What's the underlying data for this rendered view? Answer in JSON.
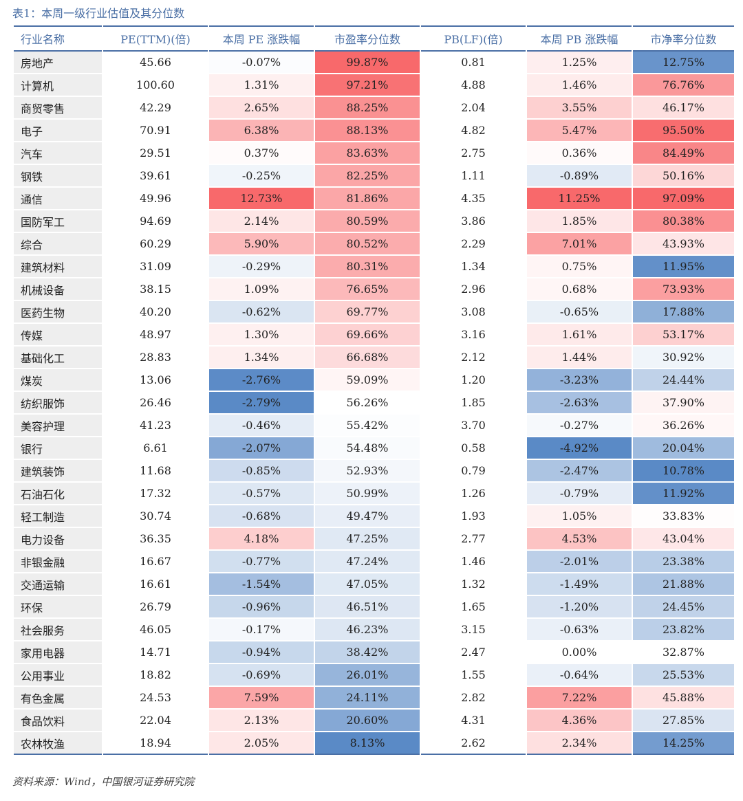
{
  "caption": "表1：本周一级行业估值及其分位数",
  "source": "资料来源：Wind，中国银河证券研究院",
  "headers": [
    "行业名称",
    "PE(TTM)(倍)",
    "本周 PE 涨跌幅",
    "市盈率分位数",
    "PB(LF)(倍)",
    "本周 PB 涨跌幅",
    "市净率分位数"
  ],
  "colors": {
    "positive": "#f8696b",
    "negative": "#5a8ac6",
    "neutral": "#ffffff"
  },
  "rows": [
    {
      "name": "房地产",
      "pe": "45.66",
      "pe_chg": "-0.07%",
      "pe_pct": "99.87%",
      "pb": "0.81",
      "pb_chg": "1.25%",
      "pb_pct": "12.75%"
    },
    {
      "name": "计算机",
      "pe": "100.60",
      "pe_chg": "1.31%",
      "pe_pct": "97.21%",
      "pb": "4.88",
      "pb_chg": "1.46%",
      "pb_pct": "76.76%"
    },
    {
      "name": "商贸零售",
      "pe": "42.29",
      "pe_chg": "2.65%",
      "pe_pct": "88.25%",
      "pb": "2.04",
      "pb_chg": "3.55%",
      "pb_pct": "46.17%"
    },
    {
      "name": "电子",
      "pe": "70.91",
      "pe_chg": "6.38%",
      "pe_pct": "88.13%",
      "pb": "4.82",
      "pb_chg": "5.47%",
      "pb_pct": "95.50%"
    },
    {
      "name": "汽车",
      "pe": "29.51",
      "pe_chg": "0.37%",
      "pe_pct": "83.63%",
      "pb": "2.75",
      "pb_chg": "0.36%",
      "pb_pct": "84.49%"
    },
    {
      "name": "钢铁",
      "pe": "39.61",
      "pe_chg": "-0.25%",
      "pe_pct": "82.25%",
      "pb": "1.11",
      "pb_chg": "-0.89%",
      "pb_pct": "50.16%"
    },
    {
      "name": "通信",
      "pe": "49.96",
      "pe_chg": "12.73%",
      "pe_pct": "81.86%",
      "pb": "4.35",
      "pb_chg": "11.25%",
      "pb_pct": "97.09%"
    },
    {
      "name": "国防军工",
      "pe": "94.69",
      "pe_chg": "2.14%",
      "pe_pct": "80.59%",
      "pb": "3.86",
      "pb_chg": "1.85%",
      "pb_pct": "80.38%"
    },
    {
      "name": "综合",
      "pe": "60.29",
      "pe_chg": "5.90%",
      "pe_pct": "80.52%",
      "pb": "2.29",
      "pb_chg": "7.01%",
      "pb_pct": "43.93%"
    },
    {
      "name": "建筑材料",
      "pe": "31.09",
      "pe_chg": "-0.29%",
      "pe_pct": "80.31%",
      "pb": "1.34",
      "pb_chg": "0.75%",
      "pb_pct": "11.95%"
    },
    {
      "name": "机械设备",
      "pe": "38.15",
      "pe_chg": "1.09%",
      "pe_pct": "76.65%",
      "pb": "2.96",
      "pb_chg": "0.68%",
      "pb_pct": "73.93%"
    },
    {
      "name": "医药生物",
      "pe": "40.20",
      "pe_chg": "-0.62%",
      "pe_pct": "69.77%",
      "pb": "3.08",
      "pb_chg": "-0.65%",
      "pb_pct": "17.88%"
    },
    {
      "name": "传媒",
      "pe": "48.97",
      "pe_chg": "1.30%",
      "pe_pct": "69.66%",
      "pb": "3.16",
      "pb_chg": "1.61%",
      "pb_pct": "53.17%"
    },
    {
      "name": "基础化工",
      "pe": "28.83",
      "pe_chg": "1.34%",
      "pe_pct": "66.68%",
      "pb": "2.12",
      "pb_chg": "1.44%",
      "pb_pct": "30.92%"
    },
    {
      "name": "煤炭",
      "pe": "13.06",
      "pe_chg": "-2.76%",
      "pe_pct": "59.09%",
      "pb": "1.20",
      "pb_chg": "-3.23%",
      "pb_pct": "24.44%"
    },
    {
      "name": "纺织服饰",
      "pe": "26.46",
      "pe_chg": "-2.79%",
      "pe_pct": "56.26%",
      "pb": "1.85",
      "pb_chg": "-2.63%",
      "pb_pct": "37.90%"
    },
    {
      "name": "美容护理",
      "pe": "41.23",
      "pe_chg": "-0.46%",
      "pe_pct": "55.42%",
      "pb": "3.70",
      "pb_chg": "-0.27%",
      "pb_pct": "36.26%"
    },
    {
      "name": "银行",
      "pe": "6.61",
      "pe_chg": "-2.07%",
      "pe_pct": "54.48%",
      "pb": "0.58",
      "pb_chg": "-4.92%",
      "pb_pct": "20.04%"
    },
    {
      "name": "建筑装饰",
      "pe": "11.68",
      "pe_chg": "-0.85%",
      "pe_pct": "52.93%",
      "pb": "0.79",
      "pb_chg": "-2.47%",
      "pb_pct": "10.78%"
    },
    {
      "name": "石油石化",
      "pe": "17.32",
      "pe_chg": "-0.57%",
      "pe_pct": "50.99%",
      "pb": "1.26",
      "pb_chg": "-0.79%",
      "pb_pct": "11.92%"
    },
    {
      "name": "轻工制造",
      "pe": "30.74",
      "pe_chg": "-0.68%",
      "pe_pct": "49.47%",
      "pb": "1.93",
      "pb_chg": "1.05%",
      "pb_pct": "33.83%"
    },
    {
      "name": "电力设备",
      "pe": "36.35",
      "pe_chg": "4.18%",
      "pe_pct": "47.25%",
      "pb": "2.77",
      "pb_chg": "4.53%",
      "pb_pct": "43.04%"
    },
    {
      "name": "非银金融",
      "pe": "16.67",
      "pe_chg": "-0.77%",
      "pe_pct": "47.24%",
      "pb": "1.46",
      "pb_chg": "-2.01%",
      "pb_pct": "23.38%"
    },
    {
      "name": "交通运输",
      "pe": "16.61",
      "pe_chg": "-1.54%",
      "pe_pct": "47.05%",
      "pb": "1.32",
      "pb_chg": "-1.49%",
      "pb_pct": "21.88%"
    },
    {
      "name": "环保",
      "pe": "26.79",
      "pe_chg": "-0.96%",
      "pe_pct": "46.51%",
      "pb": "1.65",
      "pb_chg": "-1.20%",
      "pb_pct": "24.45%"
    },
    {
      "name": "社会服务",
      "pe": "46.05",
      "pe_chg": "-0.17%",
      "pe_pct": "46.23%",
      "pb": "3.15",
      "pb_chg": "-0.63%",
      "pb_pct": "23.82%"
    },
    {
      "name": "家用电器",
      "pe": "14.71",
      "pe_chg": "-0.94%",
      "pe_pct": "38.42%",
      "pb": "2.47",
      "pb_chg": "0.00%",
      "pb_pct": "32.87%"
    },
    {
      "name": "公用事业",
      "pe": "18.82",
      "pe_chg": "-0.69%",
      "pe_pct": "26.01%",
      "pb": "1.55",
      "pb_chg": "-0.64%",
      "pb_pct": "25.53%"
    },
    {
      "name": "有色金属",
      "pe": "24.53",
      "pe_chg": "7.59%",
      "pe_pct": "24.11%",
      "pb": "2.82",
      "pb_chg": "7.22%",
      "pb_pct": "45.88%"
    },
    {
      "name": "食品饮料",
      "pe": "22.04",
      "pe_chg": "2.13%",
      "pe_pct": "20.60%",
      "pb": "4.31",
      "pb_chg": "4.36%",
      "pb_pct": "27.85%"
    },
    {
      "name": "农林牧渔",
      "pe": "18.94",
      "pe_chg": "2.05%",
      "pe_pct": "8.13%",
      "pb": "2.62",
      "pb_chg": "2.34%",
      "pb_pct": "14.25%"
    }
  ]
}
